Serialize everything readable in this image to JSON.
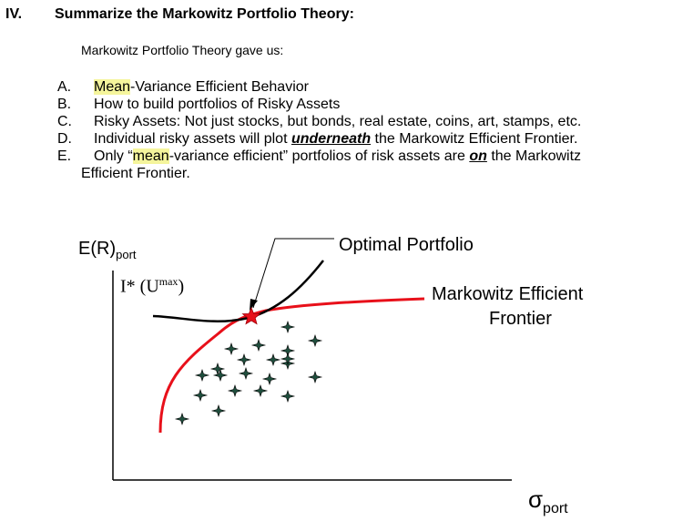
{
  "section": {
    "number": "IV.",
    "title": "Summarize the Markowitz Portfolio Theory:",
    "intro": "Markowitz Portfolio Theory gave us:"
  },
  "items": [
    {
      "letter": "A.",
      "hl": "Mean",
      "rest": "-Variance Efficient Behavior"
    },
    {
      "letter": "B.",
      "text": "How to build portfolios of Risky Assets"
    },
    {
      "letter": "C.",
      "text": "Risky Assets: Not just stocks, but bonds, real estate, coins, art, stamps, etc."
    },
    {
      "letter": "D.",
      "pre": "Individual risky assets will plot ",
      "emph": "underneath",
      "post": " the Markowitz Efficient Frontier."
    },
    {
      "letter": "E.",
      "pre": "Only “",
      "hl": "mean",
      "mid": "-variance efficient” portfolios of risk assets are ",
      "emph": "on",
      "post": " the Markowitz",
      "line2": "Efficient Frontier."
    }
  ],
  "diagram": {
    "y_axis_label": "E(R)",
    "y_axis_sub": "port",
    "x_axis_label": "σ",
    "x_axis_sub": "port",
    "indiff_label": "I* (U",
    "indiff_sup": "max",
    "indiff_close": ")",
    "optimal_label": "Optimal Portfolio",
    "frontier_label_1": "Markowitz Efficient",
    "frontier_label_2": "Frontier",
    "colors": {
      "frontier": "#e8101a",
      "indifference": "#000000",
      "asset": "#1f4e3d",
      "star": "#e8101a"
    },
    "asset_count": 21
  }
}
